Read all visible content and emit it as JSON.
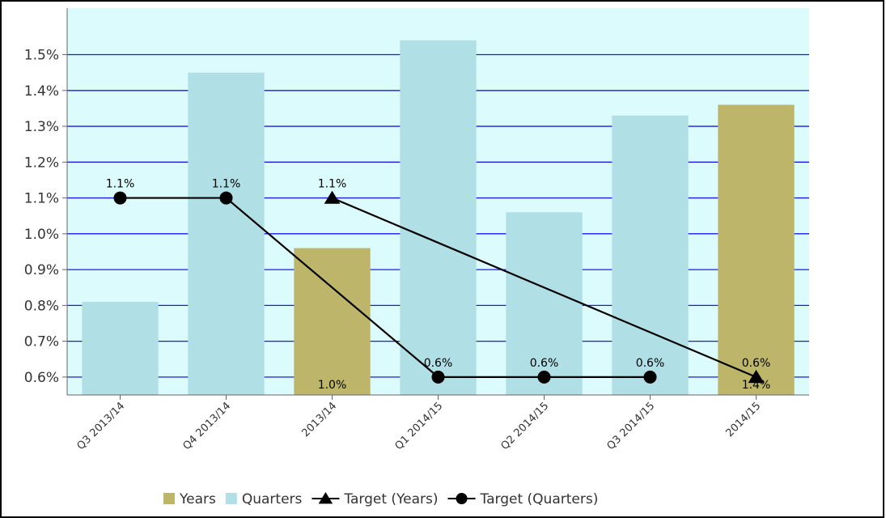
{
  "chart_data": {
    "type": "bar",
    "categories": [
      "Q3 2013/14",
      "Q4 2013/14",
      "2013/14",
      "Q1 2014/15",
      "Q2 2014/15",
      "Q3 2014/15",
      "2014/15"
    ],
    "series": [
      {
        "name": "Years",
        "kind": "bar",
        "values": [
          null,
          null,
          0.96,
          null,
          null,
          null,
          1.36
        ],
        "color": "#bdb56a"
      },
      {
        "name": "Quarters",
        "kind": "bar",
        "values": [
          0.81,
          1.45,
          null,
          1.54,
          1.06,
          1.33,
          null
        ],
        "color": "#b0dfe5"
      },
      {
        "name": "Target (Years)",
        "kind": "line",
        "marker": "triangle",
        "values": [
          null,
          null,
          1.1,
          null,
          null,
          null,
          0.6
        ],
        "color": "#000000"
      },
      {
        "name": "Target (Quarters)",
        "kind": "line",
        "marker": "circle",
        "values": [
          1.1,
          1.1,
          null,
          0.6,
          0.6,
          0.6,
          null
        ],
        "color": "#000000"
      }
    ],
    "data_labels": [
      {
        "category": "Q3 2013/14",
        "text": "1.1%"
      },
      {
        "category": "Q4 2013/14",
        "text": "1.1%"
      },
      {
        "category": "2013/14",
        "text": "1.1%"
      },
      {
        "category": "2013/14",
        "text": "1.0%",
        "position": "bar-base"
      },
      {
        "category": "Q1 2014/15",
        "text": "0.6%"
      },
      {
        "category": "Q2 2014/15",
        "text": "0.6%"
      },
      {
        "category": "Q3 2014/15",
        "text": "0.6%"
      },
      {
        "category": "2014/15",
        "text": "0.6%"
      },
      {
        "category": "2014/15",
        "text": "1.4%",
        "position": "bar-base"
      }
    ],
    "y_ticks": [
      "0.6%",
      "0.7%",
      "0.8%",
      "0.9%",
      "1.0%",
      "1.1%",
      "1.2%",
      "1.3%",
      "1.4%",
      "1.5%"
    ],
    "ylim": [
      0.55,
      1.63
    ],
    "title": "",
    "xlabel": "",
    "ylabel": "",
    "grid": true,
    "grid_color": "#1a1aee",
    "plot_background": "#dcfbfd",
    "legend_position": "bottom"
  }
}
